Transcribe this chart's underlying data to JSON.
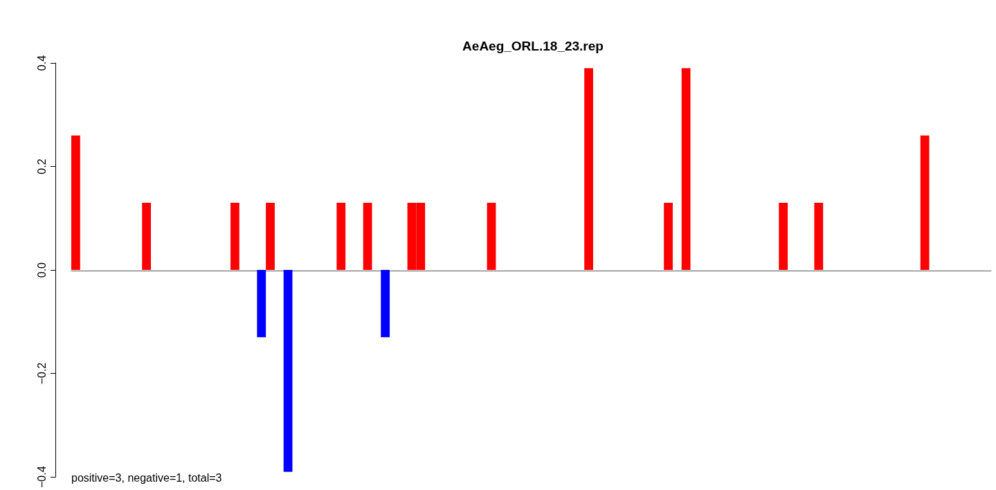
{
  "chart_data": {
    "type": "bar",
    "title": "AeAeg_ORL.18_23.rep",
    "categories": [
      null,
      null,
      null,
      null,
      null,
      null,
      null,
      null,
      null,
      null,
      null,
      null,
      null,
      null,
      null,
      null,
      null,
      null,
      null,
      null,
      null,
      null,
      null,
      null,
      null,
      null,
      null,
      null,
      null,
      null,
      null,
      null,
      null,
      null,
      null,
      null,
      null,
      null,
      null,
      null,
      null,
      null,
      null,
      null,
      null,
      null,
      null,
      null,
      null,
      null,
      null,
      null,
      null,
      null,
      null,
      null,
      null,
      null,
      null,
      null,
      null,
      null,
      null,
      null,
      null,
      null,
      null,
      null,
      null,
      null,
      null,
      null,
      null,
      null,
      null,
      null,
      null,
      null,
      null,
      null,
      null,
      null,
      null,
      null,
      null,
      null,
      null,
      null,
      null,
      null,
      null,
      null,
      null,
      null,
      null,
      null,
      null,
      null,
      null,
      null,
      null,
      null,
      null,
      null
    ],
    "values": [
      0.26,
      0,
      0,
      0,
      0,
      0,
      0,
      0,
      0.13,
      0,
      0,
      0,
      0,
      0,
      0,
      0,
      0,
      0,
      0.13,
      0,
      0,
      -0.13,
      0.13,
      0,
      -0.39,
      0,
      0,
      0,
      0,
      0,
      0.13,
      0,
      0,
      0.13,
      0,
      -0.13,
      0,
      0,
      0.13,
      0.13,
      0,
      0,
      0,
      0,
      0,
      0,
      0,
      0.13,
      0,
      0,
      0,
      0,
      0,
      0,
      0,
      0,
      0,
      0,
      0.39,
      0,
      0,
      0,
      0,
      0,
      0,
      0,
      0,
      0.13,
      0,
      0.39,
      0,
      0,
      0,
      0,
      0,
      0,
      0,
      0,
      0,
      0,
      0.13,
      0,
      0,
      0,
      0.13,
      0,
      0,
      0,
      0,
      0,
      0,
      0,
      0,
      0,
      0,
      0,
      0.26,
      0,
      0,
      0,
      0,
      0,
      0,
      0
    ],
    "colors": [
      "#ff0000",
      "#ff0000",
      "#ff0000",
      "#ff0000",
      "#ff0000",
      "#ff0000",
      "#ff0000",
      "#ff0000",
      "#ff0000",
      "#ff0000",
      "#ff0000",
      "#ff0000",
      "#ff0000",
      "#ff0000",
      "#ff0000",
      "#ff0000",
      "#ff0000",
      "#ff0000",
      "#ff0000",
      "#ff0000",
      "#ff0000",
      "#0000ff",
      "#ff0000",
      "#ff0000",
      "#0000ff",
      "#ff0000",
      "#ff0000",
      "#ff0000",
      "#ff0000",
      "#ff0000",
      "#ff0000",
      "#ff0000",
      "#ff0000",
      "#ff0000",
      "#ff0000",
      "#0000ff",
      "#ff0000",
      "#ff0000",
      "#ff0000",
      "#ff0000",
      "#ff0000",
      "#ff0000",
      "#ff0000",
      "#ff0000",
      "#ff0000",
      "#ff0000",
      "#ff0000",
      "#ff0000",
      "#ff0000",
      "#ff0000",
      "#ff0000",
      "#ff0000",
      "#ff0000",
      "#ff0000",
      "#ff0000",
      "#ff0000",
      "#ff0000",
      "#ff0000",
      "#ff0000",
      "#ff0000",
      "#ff0000",
      "#ff0000",
      "#ff0000",
      "#ff0000",
      "#ff0000",
      "#ff0000",
      "#ff0000",
      "#ff0000",
      "#ff0000",
      "#ff0000",
      "#ff0000",
      "#ff0000",
      "#ff0000",
      "#ff0000",
      "#ff0000",
      "#ff0000",
      "#ff0000",
      "#ff0000",
      "#ff0000",
      "#ff0000",
      "#ff0000",
      "#ff0000",
      "#ff0000",
      "#ff0000",
      "#ff0000",
      "#ff0000",
      "#ff0000",
      "#ff0000",
      "#ff0000",
      "#ff0000",
      "#ff0000",
      "#ff0000",
      "#ff0000",
      "#ff0000",
      "#ff0000",
      "#ff0000",
      "#ff0000",
      "#ff0000",
      "#ff0000",
      "#ff0000",
      "#ff0000",
      "#ff0000",
      "#ff0000",
      "#ff0000"
    ],
    "ylim": [
      -0.4,
      0.4
    ],
    "yticks": [
      {
        "value": -0.4,
        "label": "−0.4"
      },
      {
        "value": -0.2,
        "label": "−0.2"
      },
      {
        "value": 0,
        "label": "0.0"
      },
      {
        "value": 0.2,
        "label": "0.2"
      },
      {
        "value": 0.4,
        "label": "0.4"
      }
    ],
    "tick_labels": "y",
    "annotations": [
      "positive=3, negative=1, total=3"
    ]
  }
}
